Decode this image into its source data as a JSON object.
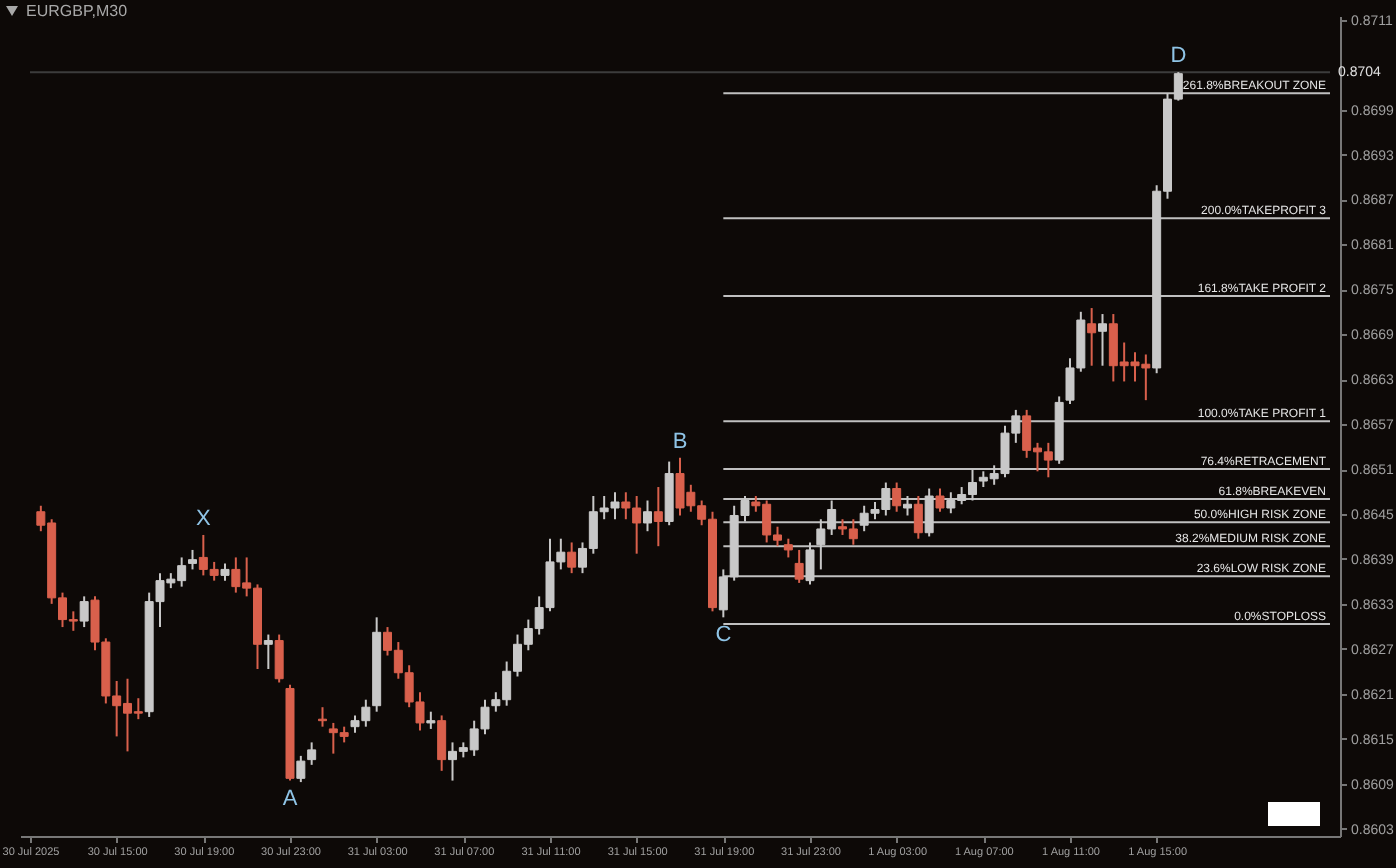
{
  "chart_data": {
    "type": "candlestick",
    "title": "EURGBP,M30",
    "xlim": [
      "2025-07-30T11:00",
      "2025-08-01T23:00"
    ],
    "xticks": [
      {
        "value": "2025-07-30T11:00",
        "label": "30 Jul 2025"
      },
      {
        "value": "2025-07-30T15:00",
        "label": "30 Jul 15:00"
      },
      {
        "value": "2025-07-30T19:00",
        "label": "30 Jul 19:00"
      },
      {
        "value": "2025-07-30T23:00",
        "label": "30 Jul 23:00"
      },
      {
        "value": "2025-07-31T03:00",
        "label": "31 Jul 03:00"
      },
      {
        "value": "2025-07-31T07:00",
        "label": "31 Jul 07:00"
      },
      {
        "value": "2025-07-31T11:00",
        "label": "31 Jul 11:00"
      },
      {
        "value": "2025-07-31T15:00",
        "label": "31 Jul 15:00"
      },
      {
        "value": "2025-07-31T19:00",
        "label": "31 Jul 19:00"
      },
      {
        "value": "2025-07-31T23:00",
        "label": "31 Jul 23:00"
      },
      {
        "value": "2025-08-01T03:00",
        "label": "1 Aug 03:00"
      },
      {
        "value": "2025-08-01T07:00",
        "label": "1 Aug 07:00"
      },
      {
        "value": "2025-08-01T11:00",
        "label": "1 Aug 11:00"
      },
      {
        "value": "2025-08-01T15:00",
        "label": "1 Aug 15:00"
      }
    ],
    "ylim": [
      0.8602,
      0.87115
    ],
    "yticks": [
      0.8603,
      0.8609,
      0.8615,
      0.8621,
      0.8627,
      0.8633,
      0.8639,
      0.8645,
      0.8651,
      0.8657,
      0.8663,
      0.8669,
      0.8675,
      0.8681,
      0.8687,
      0.8693,
      0.8699,
      0.8711
    ],
    "series": [
      {
        "color": "#d9604c",
        "x": [
          "2025-07-30T11:30",
          "2025-07-30T12:00",
          "2025-07-30T12:30",
          "2025-07-30T13:00",
          "2025-07-30T14:00",
          "2025-07-30T14:30",
          "2025-07-30T15:00",
          "2025-07-30T15:30",
          "2025-07-30T16:00",
          "2025-07-30T19:00",
          "2025-07-30T19:30",
          "2025-07-30T20:30",
          "2025-07-30T21:00",
          "2025-07-30T21:30",
          "2025-07-30T22:30",
          "2025-07-30T23:00",
          "2025-07-31T00:30",
          "2025-07-31T01:00",
          "2025-07-31T01:30",
          "2025-07-31T03:30",
          "2025-07-31T04:00",
          "2025-07-31T04:30",
          "2025-07-31T05:00",
          "2025-07-31T06:00",
          "2025-07-31T12:00",
          "2025-07-31T14:30",
          "2025-07-31T15:00",
          "2025-07-31T16:00",
          "2025-07-31T17:00",
          "2025-07-31T17:30",
          "2025-07-31T18:00",
          "2025-07-31T18:30",
          "2025-07-31T20:30",
          "2025-07-31T21:00",
          "2025-07-31T21:30",
          "2025-07-31T22:00",
          "2025-07-31T22:30",
          "2025-08-01T00:30",
          "2025-08-01T01:00",
          "2025-08-01T03:00",
          "2025-08-01T04:00",
          "2025-08-01T05:00",
          "2025-08-01T09:00",
          "2025-08-01T09:30",
          "2025-08-01T10:00",
          "2025-08-01T12:00",
          "2025-08-01T13:00",
          "2025-08-01T13:30",
          "2025-08-01T14:00",
          "2025-08-01T14:30"
        ],
        "ohlc": [
          [
            0.86453,
            0.86461,
            0.86427,
            0.86435
          ],
          [
            0.86438,
            0.86443,
            0.8633,
            0.86338
          ],
          [
            0.86338,
            0.86345,
            0.86299,
            0.86309
          ],
          [
            0.86309,
            0.8632,
            0.86294,
            0.86307
          ],
          [
            0.86335,
            0.8634,
            0.86268,
            0.86279
          ],
          [
            0.86279,
            0.86284,
            0.86197,
            0.86207
          ],
          [
            0.86207,
            0.86227,
            0.86153,
            0.86194
          ],
          [
            0.86197,
            0.8623,
            0.86133,
            0.86184
          ],
          [
            0.86186,
            0.86204,
            0.86176,
            0.86184
          ],
          [
            0.86392,
            0.86422,
            0.86368,
            0.86376
          ],
          [
            0.86376,
            0.86386,
            0.86361,
            0.86368
          ],
          [
            0.86376,
            0.86392,
            0.86345,
            0.86353
          ],
          [
            0.86358,
            0.86392,
            0.8634,
            0.86351
          ],
          [
            0.86351,
            0.86356,
            0.86243,
            0.86276
          ],
          [
            0.86281,
            0.86289,
            0.86225,
            0.8623
          ],
          [
            0.86217,
            0.86222,
            0.86094,
            0.86097
          ],
          [
            0.86176,
            0.86192,
            0.86166,
            0.86174
          ],
          [
            0.86163,
            0.86171,
            0.8613,
            0.86158
          ],
          [
            0.86158,
            0.86166,
            0.86145,
            0.86153
          ],
          [
            0.86292,
            0.86299,
            0.86261,
            0.86268
          ],
          [
            0.86268,
            0.86279,
            0.8623,
            0.86238
          ],
          [
            0.86238,
            0.86248,
            0.86192,
            0.86199
          ],
          [
            0.86199,
            0.86212,
            0.86161,
            0.86171
          ],
          [
            0.86174,
            0.86181,
            0.86107,
            0.86122
          ],
          [
            0.86399,
            0.86412,
            0.86371,
            0.86379
          ],
          [
            0.86466,
            0.86479,
            0.86443,
            0.86458
          ],
          [
            0.86458,
            0.86474,
            0.86397,
            0.86438
          ],
          [
            0.86453,
            0.86486,
            0.86407,
            0.8644
          ],
          [
            0.86504,
            0.86525,
            0.86448,
            0.86458
          ],
          [
            0.86479,
            0.86489,
            0.86453,
            0.86461
          ],
          [
            0.86461,
            0.86468,
            0.86435,
            0.86443
          ],
          [
            0.86443,
            0.86453,
            0.8632,
            0.86325
          ],
          [
            0.86466,
            0.86474,
            0.86453,
            0.86461
          ],
          [
            0.86463,
            0.86468,
            0.86412,
            0.86422
          ],
          [
            0.86422,
            0.86433,
            0.86407,
            0.86415
          ],
          [
            0.86409,
            0.86417,
            0.86392,
            0.86402
          ],
          [
            0.86384,
            0.86402,
            0.86358,
            0.86363
          ],
          [
            0.86433,
            0.86443,
            0.86422,
            0.8643
          ],
          [
            0.8643,
            0.86443,
            0.86409,
            0.86417
          ],
          [
            0.86484,
            0.86492,
            0.86453,
            0.86461
          ],
          [
            0.86463,
            0.86474,
            0.86417,
            0.86425
          ],
          [
            0.86474,
            0.86484,
            0.86453,
            0.86458
          ],
          [
            0.86581,
            0.86589,
            0.86525,
            0.86535
          ],
          [
            0.86538,
            0.86545,
            0.86507,
            0.86533
          ],
          [
            0.86533,
            0.86545,
            0.86499,
            0.86522
          ],
          [
            0.86704,
            0.86725,
            0.86648,
            0.86692
          ],
          [
            0.86704,
            0.86717,
            0.86627,
            0.86648
          ],
          [
            0.86653,
            0.86679,
            0.86627,
            0.86648
          ],
          [
            0.86653,
            0.86666,
            0.86627,
            0.86648
          ],
          [
            0.8665,
            0.86663,
            0.86602,
            0.86645
          ]
        ]
      },
      {
        "color": "#c8c8c8",
        "x": [
          "2025-07-30T13:30",
          "2025-07-30T16:30",
          "2025-07-30T17:00",
          "2025-07-30T17:30",
          "2025-07-30T18:00",
          "2025-07-30T18:30",
          "2025-07-30T20:00",
          "2025-07-30T22:00",
          "2025-07-30T23:30",
          "2025-07-31T00:00",
          "2025-07-31T02:00",
          "2025-07-31T02:30",
          "2025-07-31T03:00",
          "2025-07-31T05:30",
          "2025-07-31T06:30",
          "2025-07-31T07:00",
          "2025-07-31T07:30",
          "2025-07-31T08:00",
          "2025-07-31T08:30",
          "2025-07-31T09:00",
          "2025-07-31T09:30",
          "2025-07-31T10:00",
          "2025-07-31T10:30",
          "2025-07-31T11:00",
          "2025-07-31T11:30",
          "2025-07-31T12:30",
          "2025-07-31T13:00",
          "2025-07-31T13:30",
          "2025-07-31T14:00",
          "2025-07-31T15:30",
          "2025-07-31T16:30",
          "2025-07-31T19:00",
          "2025-07-31T19:30",
          "2025-07-31T20:00",
          "2025-07-31T23:00",
          "2025-07-31T23:30",
          "2025-08-01T00:00",
          "2025-08-01T01:30",
          "2025-08-01T02:00",
          "2025-08-01T02:30",
          "2025-08-01T03:30",
          "2025-08-01T04:30",
          "2025-08-01T05:30",
          "2025-08-01T06:00",
          "2025-08-01T06:30",
          "2025-08-01T07:00",
          "2025-08-01T07:30",
          "2025-08-01T08:00",
          "2025-08-01T08:30",
          "2025-08-01T10:30",
          "2025-08-01T11:00",
          "2025-08-01T11:30",
          "2025-08-01T12:30",
          "2025-08-01T15:00",
          "2025-08-01T15:30",
          "2025-08-01T16:00"
        ],
        "ohlc": [
          [
            0.86307,
            0.8634,
            0.86299,
            0.86333
          ],
          [
            0.86186,
            0.86345,
            0.86179,
            0.86333
          ],
          [
            0.86333,
            0.86371,
            0.86299,
            0.86361
          ],
          [
            0.86358,
            0.86371,
            0.86351,
            0.86363
          ],
          [
            0.86361,
            0.86392,
            0.86353,
            0.86381
          ],
          [
            0.86384,
            0.86402,
            0.86376,
            0.86389
          ],
          [
            0.86368,
            0.86384,
            0.86361,
            0.86376
          ],
          [
            0.86276,
            0.86289,
            0.86243,
            0.86281
          ],
          [
            0.86097,
            0.86127,
            0.86092,
            0.8612
          ],
          [
            0.86122,
            0.86145,
            0.86115,
            0.86135
          ],
          [
            0.86166,
            0.86181,
            0.86158,
            0.86174
          ],
          [
            0.86174,
            0.86202,
            0.86166,
            0.86192
          ],
          [
            0.86194,
            0.86312,
            0.86186,
            0.86292
          ],
          [
            0.86171,
            0.86186,
            0.86163,
            0.86174
          ],
          [
            0.86122,
            0.86145,
            0.86094,
            0.86133
          ],
          [
            0.86133,
            0.86145,
            0.86125,
            0.86138
          ],
          [
            0.86135,
            0.86174,
            0.86127,
            0.86163
          ],
          [
            0.86163,
            0.86202,
            0.86156,
            0.86192
          ],
          [
            0.86194,
            0.86212,
            0.86186,
            0.86202
          ],
          [
            0.86202,
            0.86253,
            0.86194,
            0.8624
          ],
          [
            0.8624,
            0.86289,
            0.86233,
            0.86276
          ],
          [
            0.86276,
            0.86309,
            0.86268,
            0.86297
          ],
          [
            0.86297,
            0.8634,
            0.86289,
            0.86325
          ],
          [
            0.86325,
            0.86417,
            0.8632,
            0.86386
          ],
          [
            0.86386,
            0.86417,
            0.86376,
            0.86399
          ],
          [
            0.86379,
            0.86412,
            0.86371,
            0.86404
          ],
          [
            0.86404,
            0.86474,
            0.86397,
            0.86453
          ],
          [
            0.86453,
            0.86474,
            0.86443,
            0.86458
          ],
          [
            0.86458,
            0.86479,
            0.86443,
            0.86466
          ],
          [
            0.86438,
            0.86468,
            0.86427,
            0.86453
          ],
          [
            0.8644,
            0.8652,
            0.86435,
            0.86504
          ],
          [
            0.86322,
            0.86376,
            0.86312,
            0.86366
          ],
          [
            0.86366,
            0.86461,
            0.86361,
            0.86448
          ],
          [
            0.86448,
            0.86474,
            0.8644,
            0.86468
          ],
          [
            0.86361,
            0.86412,
            0.86356,
            0.86402
          ],
          [
            0.86409,
            0.86443,
            0.86376,
            0.8643
          ],
          [
            0.8643,
            0.86468,
            0.86422,
            0.86456
          ],
          [
            0.86435,
            0.86461,
            0.86427,
            0.86451
          ],
          [
            0.86451,
            0.86466,
            0.86443,
            0.86456
          ],
          [
            0.86456,
            0.86492,
            0.86448,
            0.86484
          ],
          [
            0.86458,
            0.86474,
            0.86448,
            0.86463
          ],
          [
            0.86425,
            0.86484,
            0.8642,
            0.86474
          ],
          [
            0.86458,
            0.86479,
            0.86451,
            0.86468
          ],
          [
            0.86468,
            0.86486,
            0.86463,
            0.86476
          ],
          [
            0.86476,
            0.86509,
            0.86468,
            0.86492
          ],
          [
            0.86494,
            0.86507,
            0.86486,
            0.86499
          ],
          [
            0.86497,
            0.86515,
            0.86489,
            0.86504
          ],
          [
            0.86504,
            0.86568,
            0.86499,
            0.86558
          ],
          [
            0.86558,
            0.86589,
            0.86545,
            0.86581
          ],
          [
            0.86522,
            0.86607,
            0.86517,
            0.86599
          ],
          [
            0.86602,
            0.86658,
            0.86597,
            0.86645
          ],
          [
            0.86645,
            0.8672,
            0.8664,
            0.86709
          ],
          [
            0.86694,
            0.86717,
            0.86648,
            0.86704
          ],
          [
            0.86645,
            0.86889,
            0.86638,
            0.86881
          ],
          [
            0.86881,
            0.87012,
            0.86871,
            0.87004
          ],
          [
            0.87004,
            0.8704,
            0.87002,
            0.87038
          ]
        ]
      },
      {
        "type": "line",
        "name": "0.0%STOPLOSS",
        "color": "#c0c0c0",
        "x": [
          "2025-07-31T19:00",
          "2025-08-01T23:00"
        ],
        "values": [
          0.86303,
          0.86303
        ]
      },
      {
        "type": "line",
        "name": "23.6%LOW RISK ZONE",
        "color": "#c0c0c0",
        "x": [
          "2025-07-31T19:00",
          "2025-08-01T23:00"
        ],
        "values": [
          0.86367,
          0.86367
        ]
      },
      {
        "type": "line",
        "name": "38.2%MEDIUM RISK ZONE",
        "color": "#c0c0c0",
        "x": [
          "2025-07-31T19:00",
          "2025-08-01T23:00"
        ],
        "values": [
          0.86407,
          0.86407
        ]
      },
      {
        "type": "line",
        "name": "50.0%HIGH RISK ZONE",
        "color": "#c0c0c0",
        "x": [
          "2025-07-31T19:00",
          "2025-08-01T23:00"
        ],
        "values": [
          0.86439,
          0.86439
        ]
      },
      {
        "type": "line",
        "name": "61.8%BREAKEVEN",
        "color": "#c0c0c0",
        "x": [
          "2025-07-31T19:00",
          "2025-08-01T23:00"
        ],
        "values": [
          0.8647,
          0.8647
        ]
      },
      {
        "type": "line",
        "name": "76.4%RETRACEMENT",
        "color": "#c0c0c0",
        "x": [
          "2025-07-31T19:00",
          "2025-08-01T23:00"
        ],
        "values": [
          0.8651,
          0.8651
        ]
      },
      {
        "type": "line",
        "name": "100.0%TAKE PROFIT 1",
        "color": "#c0c0c0",
        "x": [
          "2025-07-31T19:00",
          "2025-08-01T23:00"
        ],
        "values": [
          0.86574,
          0.86574
        ]
      },
      {
        "type": "line",
        "name": "161.8%TAKE PROFIT 2",
        "color": "#c0c0c0",
        "x": [
          "2025-07-31T19:00",
          "2025-08-01T23:00"
        ],
        "values": [
          0.86741,
          0.86741
        ]
      },
      {
        "type": "line",
        "name": "200.0%TAKEPROFIT 3",
        "color": "#c0c0c0",
        "x": [
          "2025-07-31T19:00",
          "2025-08-01T23:00"
        ],
        "values": [
          0.86845,
          0.86845
        ]
      },
      {
        "type": "line",
        "name": "261.8%BREAKOUT ZONE",
        "color": "#c0c0c0",
        "x": [
          "2025-07-31T19:00",
          "2025-08-01T23:00"
        ],
        "values": [
          0.87012,
          0.87012
        ]
      }
    ],
    "ref_lines": [
      {
        "axis": "y",
        "value": 0.8704,
        "label": "0.8704",
        "color": "#3c3c3c"
      }
    ],
    "annotations": [
      {
        "text": "X",
        "x": "2025-07-30T19:00",
        "y": 0.86422
      },
      {
        "text": "A",
        "x": "2025-07-30T23:00",
        "y": 0.86094
      },
      {
        "text": "B",
        "x": "2025-07-31T17:00",
        "y": 0.86525
      },
      {
        "text": "C",
        "x": "2025-07-31T19:00",
        "y": 0.86312
      },
      {
        "text": "D",
        "x": "2025-08-01T16:00",
        "y": 0.8704
      }
    ]
  }
}
